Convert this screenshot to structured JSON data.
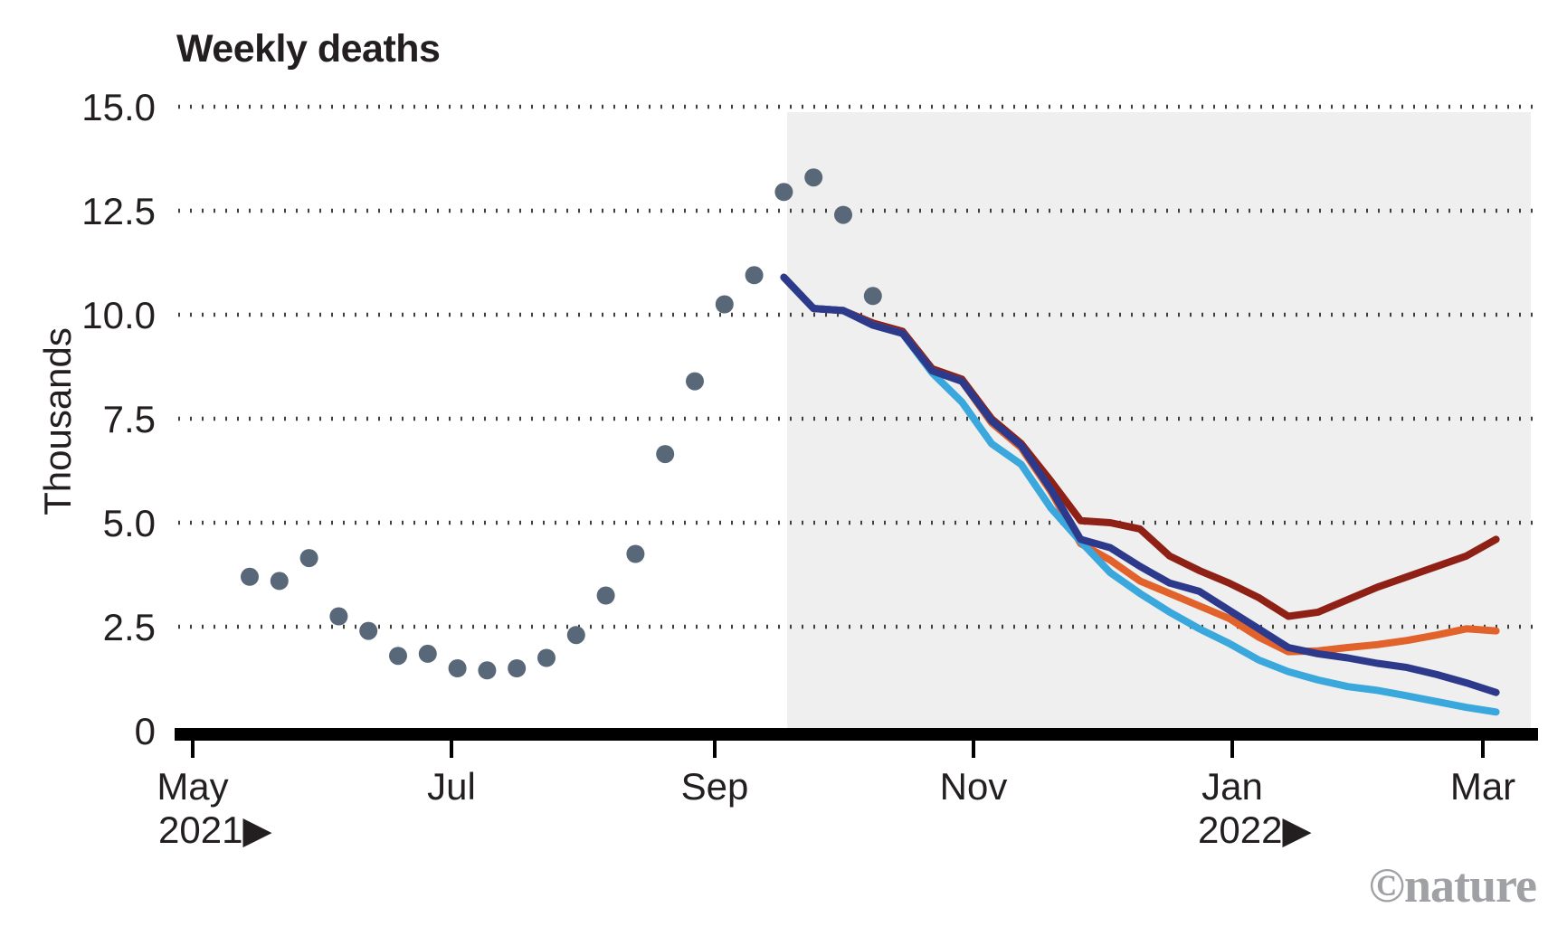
{
  "title": "Weekly deaths",
  "watermark": "©nature",
  "chart_data": {
    "type": "line",
    "title": "Weekly deaths",
    "ylabel": "Thousands",
    "ylim": [
      0,
      15
    ],
    "grid": "dotted horizontal gridlines",
    "legend": "none",
    "y_ticks": [
      {
        "value": 0,
        "label": "0"
      },
      {
        "value": 2.5,
        "label": "2.5"
      },
      {
        "value": 5.0,
        "label": "5.0"
      },
      {
        "value": 7.5,
        "label": "7.5"
      },
      {
        "value": 10.0,
        "label": "10.0"
      },
      {
        "value": 12.5,
        "label": "12.5"
      },
      {
        "value": 15.0,
        "label": "15.0"
      }
    ],
    "x_ticks": [
      {
        "label": "May",
        "sublabel": "2021▶"
      },
      {
        "label": "Jul"
      },
      {
        "label": "Sep"
      },
      {
        "label": "Nov"
      },
      {
        "label": "Jan",
        "sublabel": "2022▶"
      },
      {
        "label": "Mar"
      }
    ],
    "shaded_region": {
      "meaning": "projection window (approx. late Sep 2021 to mid Mar 2022)",
      "color": "#f0efef"
    },
    "observed": {
      "name": "observed weekly deaths (dots)",
      "color": "#596879",
      "cadence": "weekly, mid-May 2021 to mid-Oct 2021",
      "values": [
        3.7,
        3.6,
        4.15,
        2.75,
        2.4,
        1.8,
        1.85,
        1.5,
        1.45,
        1.5,
        1.75,
        2.3,
        3.25,
        4.25,
        6.65,
        8.4,
        10.25,
        10.95,
        12.95,
        13.3,
        12.4,
        10.45
      ]
    },
    "projection_start_week": 18,
    "projections": [
      {
        "name": "dark-red projection line",
        "color": "#8e2016",
        "values": [
          10.9,
          10.15,
          10.1,
          9.8,
          9.6,
          8.7,
          8.45,
          7.5,
          6.9,
          6.0,
          5.05,
          5.0,
          4.85,
          4.2,
          3.85,
          3.55,
          3.2,
          2.75,
          2.85,
          3.15,
          3.45,
          3.7,
          3.95,
          4.2,
          4.6
        ]
      },
      {
        "name": "orange projection line",
        "color": "#e2622b",
        "values": [
          10.9,
          10.15,
          10.1,
          9.75,
          9.55,
          8.65,
          8.4,
          7.4,
          6.8,
          5.75,
          4.5,
          4.1,
          3.6,
          3.3,
          3.0,
          2.7,
          2.25,
          1.9,
          1.92,
          2.0,
          2.07,
          2.17,
          2.3,
          2.45,
          2.4
        ]
      },
      {
        "name": "light-blue projection line",
        "color": "#3aa8dc",
        "values": [
          10.9,
          10.15,
          10.1,
          9.75,
          9.55,
          8.6,
          7.9,
          6.9,
          6.4,
          5.35,
          4.55,
          3.8,
          3.3,
          2.85,
          2.45,
          2.1,
          1.7,
          1.42,
          1.22,
          1.06,
          0.97,
          0.84,
          0.7,
          0.56,
          0.45
        ]
      },
      {
        "name": "navy projection line",
        "color": "#2d3a8c",
        "values": [
          10.9,
          10.15,
          10.1,
          9.75,
          9.55,
          8.65,
          8.4,
          7.45,
          6.85,
          5.8,
          4.6,
          4.4,
          3.95,
          3.55,
          3.35,
          2.9,
          2.45,
          2.0,
          1.85,
          1.75,
          1.62,
          1.52,
          1.35,
          1.15,
          0.92
        ]
      }
    ]
  }
}
